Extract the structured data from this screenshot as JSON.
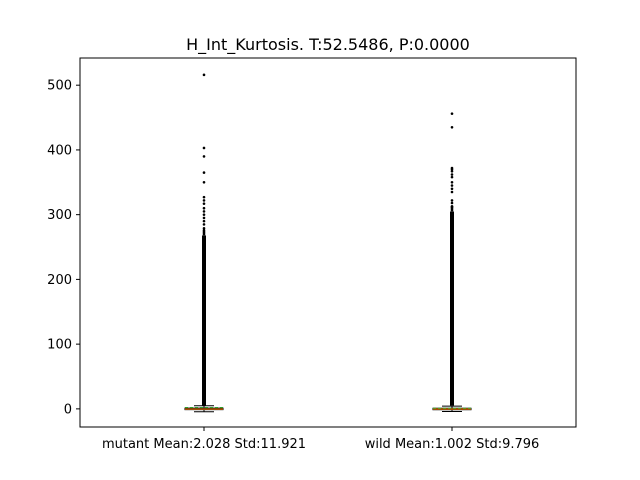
{
  "chart_data": {
    "type": "box",
    "title": "H_Int_Kurtosis. T:52.5486, P:0.0000",
    "xlabel": "",
    "ylabel": "",
    "categories": [
      "mutant Mean:2.028 Std:11.921",
      "wild Mean:1.002 Std:9.796"
    ],
    "ylim": [
      -28,
      542
    ],
    "yticks": [
      0,
      100,
      200,
      300,
      400,
      500
    ],
    "grid": false,
    "legend": "none",
    "colors": {
      "box": "#000000",
      "median": "#ff7f0e",
      "mean": "#2ca02c",
      "flier": "#000000"
    },
    "boxes": [
      {
        "name": "mutant",
        "q1": -1.2,
        "median": -0.3,
        "q3": 1.2,
        "mean": 2.028,
        "whisker_low": -4.5,
        "whisker_high": 4.8,
        "dense_outlier_range": [
          5,
          268
        ],
        "outliers": [
          279,
          285,
          290,
          295,
          300,
          305,
          310,
          317,
          322,
          327,
          350,
          365,
          390,
          403,
          516
        ]
      },
      {
        "name": "wild",
        "q1": -1.0,
        "median": -0.2,
        "q3": 1.0,
        "mean": 1.002,
        "whisker_low": -4.0,
        "whisker_high": 4.2,
        "dense_outlier_range": [
          5,
          305
        ],
        "outliers": [
          312,
          318,
          322,
          335,
          340,
          345,
          350,
          358,
          362,
          367,
          370,
          372,
          435,
          456
        ]
      }
    ]
  }
}
